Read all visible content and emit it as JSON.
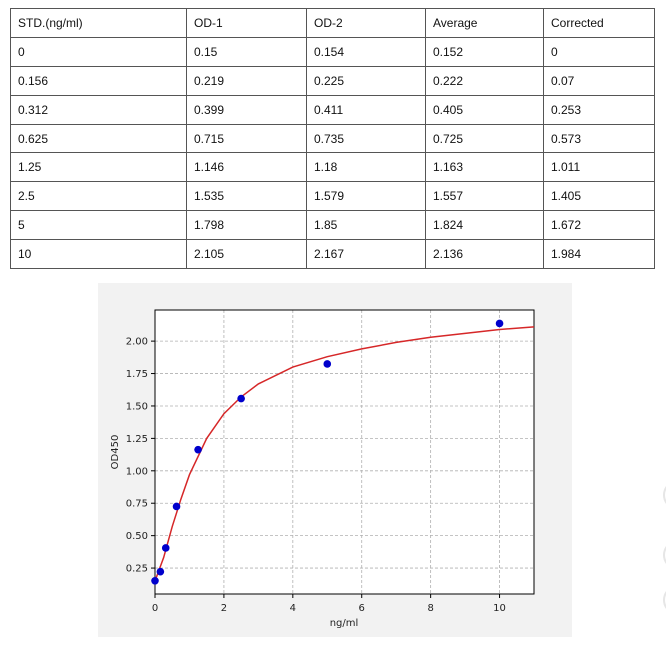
{
  "table": {
    "header": [
      "STD.(ng/ml)",
      "OD-1",
      "OD-2",
      "Average",
      "Corrected"
    ],
    "rows": [
      [
        "0",
        "0.15",
        "0.154",
        "0.152",
        "0"
      ],
      [
        "0.156",
        "0.219",
        "0.225",
        "0.222",
        "0.07"
      ],
      [
        "0.312",
        "0.399",
        "0.411",
        "0.405",
        "0.253"
      ],
      [
        "0.625",
        "0.715",
        "0.735",
        "0.725",
        "0.573"
      ],
      [
        "1.25",
        "1.146",
        "1.18",
        "1.163",
        "1.011"
      ],
      [
        "2.5",
        "1.535",
        "1.579",
        "1.557",
        "1.405"
      ],
      [
        "5",
        "1.798",
        "1.85",
        "1.824",
        "1.672"
      ],
      [
        "10",
        "2.105",
        "2.167",
        "2.136",
        "1.984"
      ]
    ]
  },
  "chart_data": {
    "type": "scatter",
    "x_label": "ng/ml",
    "y_label": "OD450",
    "xlim": [
      0,
      11
    ],
    "ylim": [
      0.05,
      2.24
    ],
    "xticks": [
      0,
      2,
      4,
      6,
      8,
      10
    ],
    "yticks": [
      0.25,
      {
        "value": 0.5,
        "label": "0.50"
      },
      0.75,
      {
        "value": 1,
        "label": "1.00"
      },
      1.25,
      {
        "value": 1.5,
        "label": "1.50"
      },
      1.75,
      {
        "value": 2,
        "label": "2.00"
      }
    ],
    "grid": true,
    "series": [
      {
        "mode": "markers",
        "color": "#0000cc",
        "x": [
          0,
          0.156,
          0.312,
          0.625,
          1.25,
          2.5,
          5,
          10
        ],
        "values": [
          0.152,
          0.222,
          0.405,
          0.725,
          1.163,
          1.557,
          1.824,
          2.136
        ]
      },
      {
        "mode": "line",
        "color": "#d62728",
        "x": [
          0,
          0.25,
          0.5,
          0.75,
          1,
          1.5,
          2,
          2.5,
          3,
          4,
          5,
          6,
          7,
          8,
          9,
          10,
          11
        ],
        "values": [
          0.15,
          0.33,
          0.57,
          0.78,
          0.97,
          1.25,
          1.44,
          1.57,
          1.67,
          1.8,
          1.88,
          1.94,
          1.99,
          2.03,
          2.06,
          2.09,
          2.11
        ]
      }
    ]
  }
}
